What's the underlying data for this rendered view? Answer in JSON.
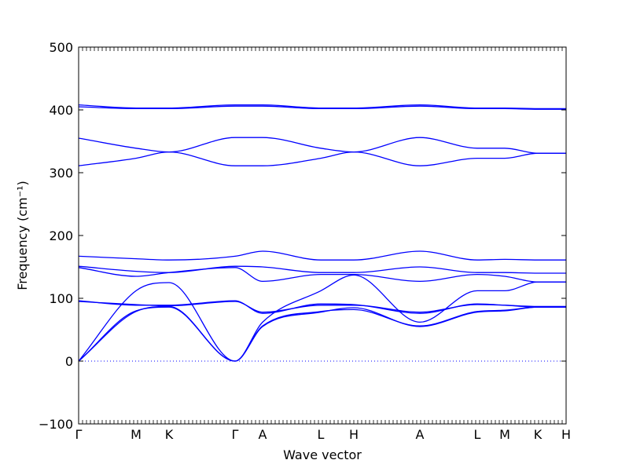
{
  "chart_data": {
    "type": "line",
    "title": "",
    "xlabel": "Wave vector",
    "ylabel": "Frequency (cm⁻¹)",
    "ylim": [
      -100,
      500
    ],
    "yticks": [
      -100,
      0,
      100,
      200,
      300,
      400,
      500
    ],
    "grid": false,
    "legend": "none",
    "line_color": "#0000ff",
    "zero_line": {
      "y": 0,
      "style": "dotted"
    },
    "x_range": [
      0,
      620
    ],
    "kpoints": [
      {
        "label": "Γ",
        "x": 0
      },
      {
        "label": "M",
        "x": 73
      },
      {
        "label": "K",
        "x": 115
      },
      {
        "label": "Γ",
        "x": 199
      },
      {
        "label": "A",
        "x": 234
      },
      {
        "label": "L",
        "x": 308
      },
      {
        "label": "H",
        "x": 350
      },
      {
        "label": "A",
        "x": 434
      },
      {
        "label": "L",
        "x": 507
      },
      {
        "label": "M",
        "x": 542
      },
      {
        "label": "K",
        "x": 584
      },
      {
        "label": "H",
        "x": 620
      }
    ],
    "series": [
      {
        "x": [
          0,
          73,
          115,
          199,
          234,
          308,
          350,
          434,
          507,
          542,
          584,
          620
        ],
        "values": [
          405,
          402,
          402,
          406,
          406,
          402,
          402,
          406,
          402,
          402,
          401,
          401
        ]
      },
      {
        "x": [
          0,
          73,
          115,
          199,
          234,
          308,
          350,
          434,
          507,
          542,
          584,
          620
        ],
        "values": [
          408,
          403,
          403,
          408,
          408,
          403,
          403,
          408,
          403,
          403,
          402,
          402
        ]
      },
      {
        "x": [
          0,
          73,
          115,
          199,
          234,
          308,
          350,
          434,
          507,
          542,
          584,
          620
        ],
        "values": [
          355,
          339,
          333,
          356,
          356,
          339,
          333,
          356,
          339,
          339,
          331,
          331
        ]
      },
      {
        "x": [
          0,
          73,
          115,
          199,
          234,
          308,
          350,
          434,
          507,
          542,
          584,
          620
        ],
        "values": [
          311,
          323,
          333,
          311,
          311,
          323,
          333,
          311,
          323,
          323,
          331,
          331
        ]
      },
      {
        "x": [
          0,
          73,
          115,
          199,
          234,
          308,
          350,
          434,
          507,
          542,
          584,
          620
        ],
        "values": [
          167,
          163,
          161,
          167,
          175,
          161,
          161,
          175,
          161,
          162,
          161,
          161
        ]
      },
      {
        "x": [
          0,
          73,
          115,
          199,
          234,
          308,
          350,
          434,
          507,
          542,
          584,
          620
        ],
        "values": [
          151,
          143,
          141,
          151,
          150,
          141,
          141,
          150,
          141,
          141,
          140,
          140
        ]
      },
      {
        "x": [
          0,
          73,
          115,
          199,
          234,
          308,
          350,
          434,
          507,
          542,
          584,
          620
        ],
        "values": [
          149,
          135,
          141,
          149,
          127,
          138,
          138,
          127,
          138,
          135,
          126,
          126
        ]
      },
      {
        "x": [
          0,
          73,
          115,
          199,
          234,
          308,
          350,
          434,
          507,
          542,
          584,
          620
        ],
        "values": [
          96,
          89,
          89,
          96,
          76,
          91,
          90,
          76,
          91,
          89,
          86,
          86
        ]
      },
      {
        "x": [
          0,
          73,
          115,
          199,
          234,
          308,
          350,
          434,
          507,
          542,
          584,
          620
        ],
        "values": [
          95,
          90,
          88,
          95,
          78,
          89,
          89,
          78,
          90,
          89,
          87,
          87
        ]
      },
      {
        "x": [
          0,
          73,
          115,
          199,
          234,
          308,
          350,
          434,
          507,
          542,
          584,
          620
        ],
        "values": [
          0,
          112,
          125,
          0,
          62,
          112,
          137,
          62,
          112,
          112,
          126,
          126
        ]
      },
      {
        "x": [
          0,
          73,
          115,
          199,
          234,
          308,
          350,
          434,
          507,
          542,
          584,
          620
        ],
        "values": [
          0,
          80,
          86,
          0,
          55,
          78,
          85,
          55,
          78,
          80,
          86,
          86
        ]
      },
      {
        "x": [
          0,
          73,
          115,
          199,
          234,
          308,
          350,
          434,
          507,
          542,
          584,
          620
        ],
        "values": [
          0,
          79,
          87,
          0,
          56,
          79,
          82,
          56,
          79,
          81,
          86,
          86
        ]
      }
    ]
  }
}
